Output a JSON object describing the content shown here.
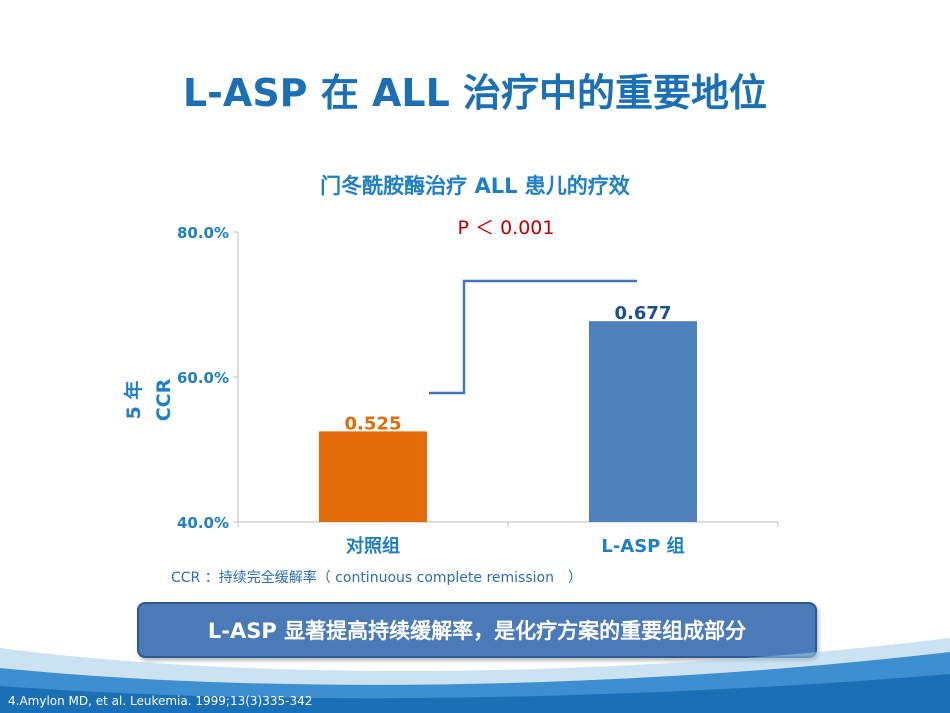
{
  "slide": {
    "title": "L-ASP 在 ALL 治疗中的重要地位",
    "footnote": "CCR ：持续完全缓解率（ continuous complete remission　）",
    "callout": "L-ASP 显著提高持续缓解率，是化疗方案的重要组成部分",
    "reference": "4.Amylon MD, et al. Leukemia. 1999;13(3)335-342"
  },
  "chart_data": {
    "type": "bar",
    "title": "门冬酰胺酶治疗 ALL 患儿的疗效",
    "ylabel_line1": "5 年",
    "ylabel_line2": "CCR",
    "ylim": [
      0.4,
      0.8
    ],
    "yticks": [
      0.4,
      0.6,
      0.8
    ],
    "ytick_labels": [
      "40.0%",
      "60.0%",
      "80.0%"
    ],
    "categories": [
      "对照组",
      "L-ASP 组"
    ],
    "values": [
      0.525,
      0.677
    ],
    "value_labels": [
      "0.525",
      "0.677"
    ],
    "colors": [
      "#e36c0a",
      "#4f81bd"
    ],
    "label_colors": [
      "#e36c0a",
      "#1f4e8c"
    ],
    "annotation": "P ＜ 0.001",
    "annotation_color": "#c00000",
    "bracket_color": "#4472c4"
  }
}
